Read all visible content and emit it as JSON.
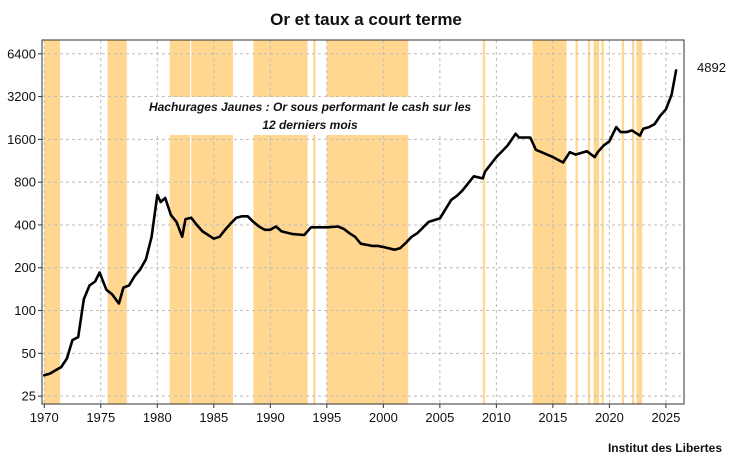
{
  "chart_data": {
    "type": "line",
    "title": "Or et taux a court terme",
    "annotation_line1": "Hachurages Jaunes : Or sous performant le cash sur les",
    "annotation_line2": "12 derniers mois",
    "source": "Institut des Libertes",
    "last_value_label": "4892",
    "y_scale": "log",
    "ylim": [
      22,
      8000
    ],
    "xlim": [
      1969.8,
      2026.6
    ],
    "y_ticks": [
      25,
      50,
      100,
      200,
      400,
      800,
      1600,
      3200,
      6400
    ],
    "y_tick_labels": [
      "25",
      "50",
      "100",
      "200",
      "400",
      "800",
      "1600",
      "3200",
      "6400"
    ],
    "x_ticks": [
      1970,
      1975,
      1980,
      1985,
      1990,
      1995,
      2000,
      2005,
      2010,
      2015,
      2020,
      2025
    ],
    "x_tick_labels": [
      "1970",
      "1975",
      "1980",
      "1985",
      "1990",
      "1995",
      "2000",
      "2005",
      "2010",
      "2015",
      "2020",
      "2025"
    ],
    "grid": true,
    "shade_color": "#FFD790",
    "line_color": "#000000",
    "shaded_periods": [
      [
        1970.0,
        1971.4
      ],
      [
        1975.6,
        1977.3
      ],
      [
        1981.1,
        1982.9
      ],
      [
        1983.0,
        1986.7
      ],
      [
        1988.5,
        1993.3
      ],
      [
        1993.8,
        1994.0
      ],
      [
        1995.0,
        2002.2
      ],
      [
        2008.8,
        2009.0
      ],
      [
        2013.2,
        2016.2
      ],
      [
        2017.0,
        2017.2
      ],
      [
        2018.1,
        2018.3
      ],
      [
        2018.6,
        2019.1
      ],
      [
        2019.3,
        2019.5
      ],
      [
        2021.1,
        2021.3
      ],
      [
        2022.0,
        2022.2
      ],
      [
        2022.4,
        2022.9
      ]
    ],
    "series": [
      {
        "x": [
          1970.0,
          1970.5,
          1971.0,
          1971.5,
          1972.0,
          1972.5,
          1973.0,
          1973.5,
          1974.0,
          1974.5,
          1974.9,
          1975.5,
          1976.0,
          1976.6,
          1977.0,
          1977.5,
          1978.0,
          1978.5,
          1979.0,
          1979.5,
          1980.0,
          1980.3,
          1980.7,
          1981.2,
          1981.7,
          1982.2,
          1982.5,
          1983.0,
          1983.5,
          1984.0,
          1984.5,
          1985.0,
          1985.5,
          1986.0,
          1986.5,
          1987.0,
          1987.5,
          1988.0,
          1988.5,
          1989.0,
          1989.5,
          1990.0,
          1990.5,
          1991.0,
          1992.0,
          1993.0,
          1993.6,
          1994.0,
          1995.0,
          1996.0,
          1996.5,
          1997.0,
          1997.5,
          1998.0,
          1999.0,
          1999.5,
          2000.0,
          2001.0,
          2001.5,
          2002.0,
          2002.5,
          2003.0,
          2004.0,
          2005.0,
          2006.0,
          2006.5,
          2007.0,
          2008.0,
          2008.8,
          2009.0,
          2010.0,
          2011.0,
          2011.7,
          2012.0,
          2012.5,
          2013.0,
          2013.5,
          2014.0,
          2015.0,
          2015.9,
          2016.5,
          2017.0,
          2018.0,
          2018.7,
          2019.0,
          2019.5,
          2020.0,
          2020.6,
          2021.0,
          2021.5,
          2022.0,
          2022.7,
          2023.0,
          2023.5,
          2024.0,
          2024.5,
          2025.0,
          2025.5,
          2025.9
        ],
        "values": [
          35,
          36,
          38,
          40,
          46,
          62,
          65,
          120,
          150,
          160,
          185,
          140,
          130,
          112,
          145,
          150,
          175,
          195,
          230,
          330,
          650,
          580,
          620,
          470,
          420,
          330,
          440,
          450,
          400,
          360,
          340,
          320,
          330,
          370,
          410,
          450,
          460,
          460,
          420,
          390,
          370,
          370,
          390,
          360,
          345,
          340,
          385,
          385,
          385,
          390,
          375,
          350,
          330,
          295,
          285,
          285,
          280,
          268,
          275,
          300,
          330,
          350,
          420,
          445,
          600,
          640,
          700,
          880,
          850,
          950,
          1200,
          1450,
          1750,
          1650,
          1650,
          1650,
          1350,
          1300,
          1200,
          1100,
          1300,
          1250,
          1320,
          1200,
          1310,
          1450,
          1550,
          1950,
          1800,
          1800,
          1850,
          1700,
          1900,
          1950,
          2050,
          2350,
          2600,
          3300,
          4892
        ]
      }
    ]
  }
}
